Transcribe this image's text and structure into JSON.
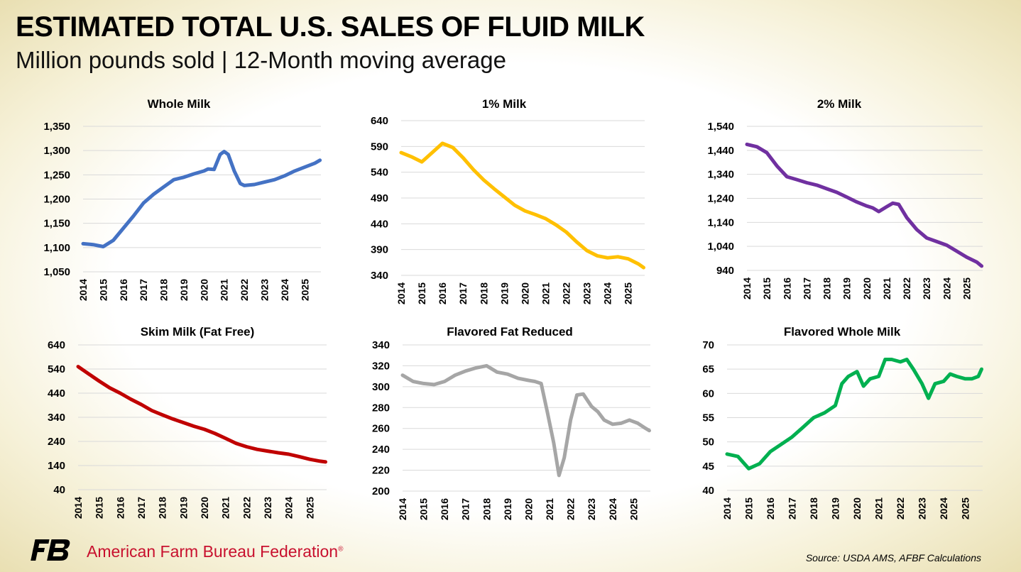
{
  "header": {
    "title": "ESTIMATED TOTAL U.S. SALES OF FLUID MILK",
    "subtitle": "Million pounds sold | 12-Month moving average"
  },
  "footer": {
    "org_name": "American Farm Bureau Federation",
    "registered_mark": "®",
    "source": "Source: USDA AMS, AFBF Calculations",
    "brand_color": "#c8102e"
  },
  "chart_data": [
    {
      "type": "line",
      "title": "Whole Milk",
      "color": "#4472c4",
      "ylim": [
        1050,
        1350
      ],
      "yticks": [
        "1,050",
        "1,100",
        "1,150",
        "1,200",
        "1,250",
        "1,300",
        "1,350"
      ],
      "xticks": [
        "2014",
        "2015",
        "2016",
        "2017",
        "2018",
        "2019",
        "2020",
        "2021",
        "2022",
        "2023",
        "2024",
        "2025"
      ],
      "grid": true,
      "series": [
        {
          "x": [
            2014.0,
            2014.5,
            2015.0,
            2015.5,
            2016.0,
            2016.5,
            2017.0,
            2017.5,
            2018.0,
            2018.5,
            2019.0,
            2019.5,
            2020.0,
            2020.2,
            2020.5,
            2020.8,
            2021.0,
            2021.2,
            2021.5,
            2021.8,
            2022.0,
            2022.5,
            2023.0,
            2023.5,
            2024.0,
            2024.5,
            2025.0,
            2025.5,
            2025.75
          ],
          "y": [
            1108,
            1106,
            1102,
            1115,
            1140,
            1165,
            1192,
            1210,
            1225,
            1240,
            1245,
            1252,
            1258,
            1262,
            1261,
            1292,
            1298,
            1292,
            1258,
            1232,
            1228,
            1230,
            1235,
            1240,
            1248,
            1258,
            1266,
            1274,
            1280
          ]
        }
      ]
    },
    {
      "type": "line",
      "title": "1% Milk",
      "color": "#ffc000",
      "ylim": [
        340,
        640
      ],
      "yticks": [
        "340",
        "390",
        "440",
        "490",
        "540",
        "590",
        "640"
      ],
      "xticks": [
        "2014",
        "2015",
        "2016",
        "2017",
        "2018",
        "2019",
        "2020",
        "2021",
        "2022",
        "2023",
        "2024",
        "2025"
      ],
      "grid": true,
      "series": [
        {
          "x": [
            2014.0,
            2014.5,
            2015.0,
            2015.5,
            2016.0,
            2016.5,
            2017.0,
            2017.5,
            2018.0,
            2018.5,
            2019.0,
            2019.5,
            2020.0,
            2020.5,
            2021.0,
            2021.5,
            2022.0,
            2022.5,
            2023.0,
            2023.5,
            2024.0,
            2024.5,
            2025.0,
            2025.5,
            2025.75
          ],
          "y": [
            578,
            570,
            560,
            578,
            596,
            588,
            568,
            545,
            525,
            508,
            492,
            476,
            465,
            458,
            450,
            438,
            424,
            405,
            388,
            378,
            374,
            376,
            372,
            362,
            355
          ]
        }
      ]
    },
    {
      "type": "line",
      "title": "2% Milk",
      "color": "#7030a0",
      "ylim": [
        940,
        1540
      ],
      "yticks": [
        "940",
        "1,040",
        "1,140",
        "1,240",
        "1,340",
        "1,440",
        "1,540"
      ],
      "xticks": [
        "2014",
        "2015",
        "2016",
        "2017",
        "2018",
        "2019",
        "2020",
        "2021",
        "2022",
        "2023",
        "2024",
        "2025"
      ],
      "grid": true,
      "series": [
        {
          "x": [
            2014.0,
            2014.5,
            2015.0,
            2015.5,
            2016.0,
            2016.5,
            2017.0,
            2017.5,
            2018.0,
            2018.5,
            2019.0,
            2019.5,
            2020.0,
            2020.3,
            2020.6,
            2021.0,
            2021.3,
            2021.6,
            2022.0,
            2022.5,
            2023.0,
            2023.5,
            2024.0,
            2024.5,
            2025.0,
            2025.5,
            2025.75
          ],
          "y": [
            1465,
            1455,
            1430,
            1375,
            1330,
            1318,
            1305,
            1295,
            1280,
            1265,
            1245,
            1225,
            1208,
            1200,
            1185,
            1205,
            1220,
            1215,
            1160,
            1110,
            1075,
            1060,
            1045,
            1020,
            995,
            975,
            958
          ]
        }
      ]
    },
    {
      "type": "line",
      "title": "Skim Milk (Fat Free)",
      "color": "#c00000",
      "ylim": [
        40,
        640
      ],
      "yticks": [
        "40",
        "140",
        "240",
        "340",
        "440",
        "540",
        "640"
      ],
      "xticks": [
        "2014",
        "2015",
        "2016",
        "2017",
        "2018",
        "2019",
        "2020",
        "2021",
        "2022",
        "2023",
        "2024",
        "2025"
      ],
      "grid": true,
      "series": [
        {
          "x": [
            2014.0,
            2014.5,
            2015.0,
            2015.5,
            2016.0,
            2016.5,
            2017.0,
            2017.5,
            2018.0,
            2018.5,
            2019.0,
            2019.5,
            2020.0,
            2020.5,
            2021.0,
            2021.5,
            2022.0,
            2022.5,
            2023.0,
            2023.5,
            2024.0,
            2024.5,
            2025.0,
            2025.5,
            2025.75
          ],
          "y": [
            550,
            520,
            490,
            462,
            440,
            415,
            393,
            368,
            350,
            333,
            318,
            303,
            290,
            273,
            253,
            232,
            218,
            207,
            200,
            193,
            187,
            177,
            166,
            158,
            155
          ]
        }
      ]
    },
    {
      "type": "line",
      "title": "Flavored Fat Reduced",
      "color": "#a6a6a6",
      "ylim": [
        200,
        340
      ],
      "yticks": [
        "200",
        "220",
        "240",
        "260",
        "280",
        "300",
        "320",
        "340"
      ],
      "xticks": [
        "2014",
        "2015",
        "2016",
        "2017",
        "2018",
        "2019",
        "2020",
        "2021",
        "2022",
        "2023",
        "2024",
        "2025"
      ],
      "grid": true,
      "series": [
        {
          "x": [
            2014.0,
            2014.5,
            2015.0,
            2015.5,
            2016.0,
            2016.5,
            2017.0,
            2017.5,
            2018.0,
            2018.5,
            2019.0,
            2019.5,
            2020.0,
            2020.3,
            2020.6,
            2020.9,
            2021.2,
            2021.45,
            2021.7,
            2022.0,
            2022.3,
            2022.6,
            2023.0,
            2023.3,
            2023.6,
            2024.0,
            2024.4,
            2024.8,
            2025.2,
            2025.5,
            2025.75
          ],
          "y": [
            311,
            305,
            303,
            302,
            305,
            311,
            315,
            318,
            320,
            314,
            312,
            308,
            306,
            305,
            303,
            275,
            246,
            215,
            232,
            268,
            292,
            293,
            281,
            276,
            268,
            264,
            265,
            268,
            265,
            261,
            258
          ]
        }
      ]
    },
    {
      "type": "line",
      "title": "Flavored Whole Milk",
      "color": "#00b050",
      "ylim": [
        40,
        70
      ],
      "yticks": [
        "40",
        "45",
        "50",
        "55",
        "60",
        "65",
        "70"
      ],
      "xticks": [
        "2014",
        "2015",
        "2016",
        "2017",
        "2018",
        "2019",
        "2020",
        "2021",
        "2022",
        "2023",
        "2024",
        "2025"
      ],
      "grid": true,
      "series": [
        {
          "x": [
            2014.0,
            2014.5,
            2015.0,
            2015.5,
            2016.0,
            2016.5,
            2017.0,
            2017.5,
            2018.0,
            2018.5,
            2019.0,
            2019.3,
            2019.6,
            2020.0,
            2020.3,
            2020.6,
            2021.0,
            2021.3,
            2021.6,
            2022.0,
            2022.3,
            2022.6,
            2023.0,
            2023.3,
            2023.6,
            2024.0,
            2024.3,
            2024.6,
            2025.0,
            2025.3,
            2025.6,
            2025.75
          ],
          "y": [
            47.5,
            47.0,
            44.5,
            45.5,
            48.0,
            49.5,
            51.0,
            53.0,
            55.0,
            56.0,
            57.5,
            62.0,
            63.5,
            64.5,
            61.5,
            63.0,
            63.5,
            67.0,
            67.0,
            66.5,
            67.0,
            65.0,
            62.0,
            59.0,
            62.0,
            62.5,
            64.0,
            63.5,
            63.0,
            63.0,
            63.5,
            65.0
          ]
        }
      ]
    }
  ]
}
